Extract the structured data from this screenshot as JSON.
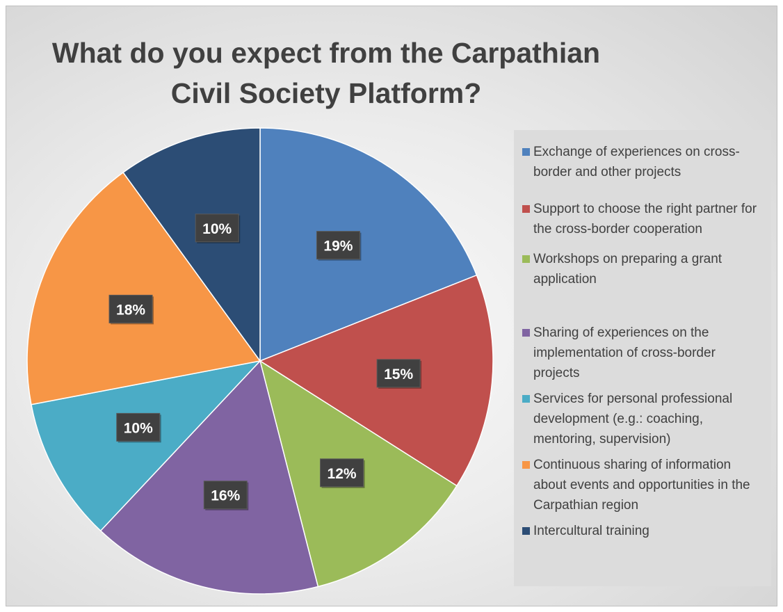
{
  "chart_data": {
    "type": "pie",
    "title": "What do you expect from the Carpathian Civil Society Platform?",
    "labels": [
      "Exchange of experiences on cross-border and other projects",
      "Support to choose the right partner for the cross-border cooperation",
      "Workshops on  preparing a grant application",
      "Sharing of experiences on the implementation of cross-border projects",
      "Services for personal professional development (e.g.: coaching, mentoring, supervision)",
      "Continuous sharing of information about events and opportunities in the Carpathian region",
      "Intercultural training"
    ],
    "values": [
      19,
      15,
      12,
      16,
      10,
      18,
      10
    ],
    "data_labels": [
      "19%",
      "15%",
      "12%",
      "16%",
      "10%",
      "18%",
      "10%"
    ],
    "colors": [
      "#4f81bd",
      "#c0504d",
      "#9bbb59",
      "#8064a2",
      "#4bacc6",
      "#f79646",
      "#2c4d75"
    ],
    "legend_position": "right"
  }
}
